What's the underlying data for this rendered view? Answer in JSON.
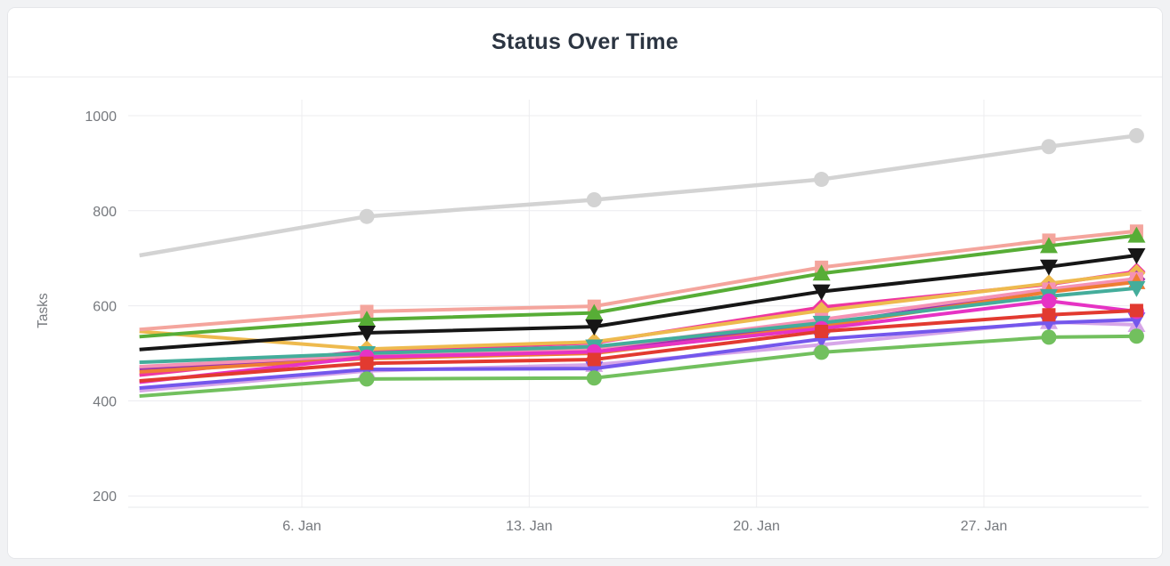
{
  "widget": {
    "title": "Status Over Time"
  },
  "chart_data": {
    "type": "line",
    "title": "Status Over Time",
    "xlabel": "",
    "ylabel": "Tasks",
    "legend": "none",
    "grid": true,
    "y_ticks": [
      1000,
      800,
      600,
      400,
      200
    ],
    "ylim": [
      200,
      1000
    ],
    "x_tick_labels": [
      "6. Jan",
      "13. Jan",
      "20. Jan",
      "27. Jan"
    ],
    "x_tick_days": [
      6,
      13,
      20,
      27
    ],
    "x_points": [
      "1. Jan",
      "8. Jan",
      "15. Jan",
      "22. Jan",
      "29. Jan",
      "31. Jan"
    ],
    "x_days": [
      1,
      8,
      15,
      22,
      29,
      31.7
    ],
    "series": [
      {
        "name": "gray",
        "color": "#d3d3d3",
        "marker": "circle",
        "values": [
          706,
          788,
          823,
          866,
          935,
          958
        ]
      },
      {
        "name": "lavender",
        "color": "#d6a6e8",
        "marker": "triangle",
        "values": [
          421,
          463,
          476,
          518,
          566,
          560
        ]
      },
      {
        "name": "indigo",
        "color": "#7457ec",
        "marker": "triangle-down",
        "values": [
          427,
          466,
          468,
          530,
          564,
          571
        ]
      },
      {
        "name": "magenta",
        "color": "#ee37a0",
        "marker": "diamond",
        "values": [
          454,
          505,
          522,
          597,
          645,
          672
        ]
      },
      {
        "name": "gold",
        "color": "#eeba4e",
        "marker": "diamond",
        "values": [
          546,
          509,
          524,
          590,
          647,
          669
        ]
      },
      {
        "name": "dark-purple",
        "color": "#9c33ae",
        "marker": "diamond",
        "values": [
          468,
          494,
          506,
          560,
          633,
          656
        ]
      },
      {
        "name": "pink",
        "color": "#f592b4",
        "marker": "square",
        "values": [
          472,
          496,
          510,
          571,
          635,
          657
        ]
      },
      {
        "name": "orange",
        "color": "#ee7d33",
        "marker": "triangle",
        "values": [
          461,
          489,
          500,
          557,
          629,
          650
        ]
      },
      {
        "name": "teal",
        "color": "#44ad9b",
        "marker": "triangle-down",
        "values": [
          481,
          500,
          514,
          564,
          620,
          637
        ]
      },
      {
        "name": "hot-pink",
        "color": "#e633c4",
        "marker": "circle",
        "values": [
          439,
          492,
          503,
          552,
          610,
          588
        ]
      },
      {
        "name": "red",
        "color": "#e23a30",
        "marker": "square",
        "values": [
          442,
          479,
          487,
          546,
          581,
          590
        ]
      },
      {
        "name": "light-green",
        "color": "#72c05e",
        "marker": "circle",
        "values": [
          410,
          446,
          448,
          502,
          534,
          536
        ]
      },
      {
        "name": "salmon",
        "color": "#f4a59d",
        "marker": "square",
        "values": [
          550,
          588,
          599,
          681,
          738,
          757
        ]
      },
      {
        "name": "green",
        "color": "#57ad36",
        "marker": "triangle",
        "values": [
          535,
          571,
          585,
          668,
          726,
          748
        ]
      },
      {
        "name": "black",
        "color": "#161616",
        "marker": "triangle-down",
        "values": [
          508,
          543,
          556,
          630,
          682,
          706
        ]
      }
    ]
  }
}
